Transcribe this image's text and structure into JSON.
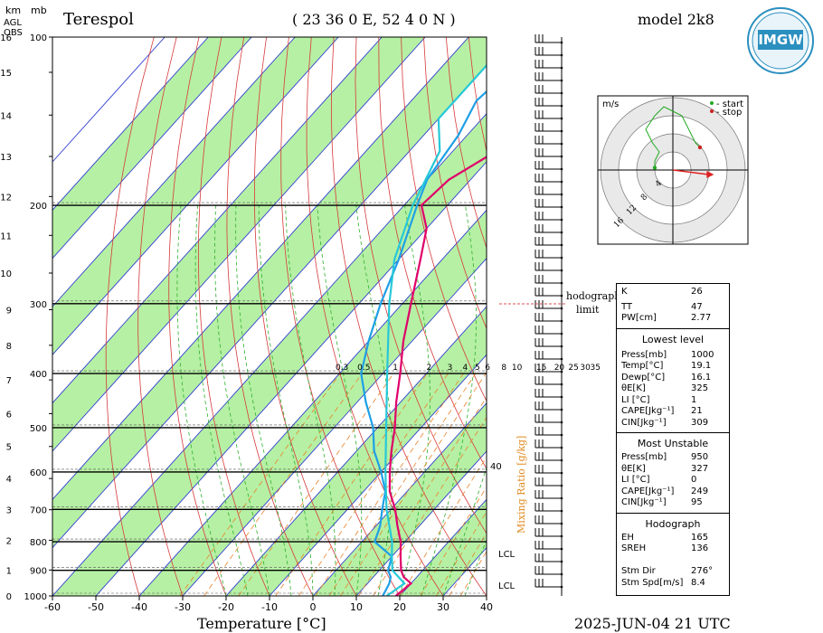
{
  "header": {
    "station": "Terespol",
    "coords": "( 23 36 0 E, 52 4 0 N )",
    "model": "model 2k8",
    "date_time": "2025-JUN-04   21 UTC",
    "logo_text": "IMGW"
  },
  "axes": {
    "km_label": "km",
    "agl_label": [
      "AGL",
      "OBS"
    ],
    "mb_label": "mb",
    "x_title": "Temperature [°C]",
    "mixing_ratio_title": "Mixing Ratio [g/kg]",
    "x_ticks": [
      -60,
      -50,
      -40,
      -30,
      -20,
      -10,
      0,
      10,
      20,
      30,
      40
    ],
    "p_ticks": [
      100,
      200,
      300,
      400,
      500,
      600,
      700,
      800,
      900,
      1000
    ],
    "km_ticks": [
      0,
      1,
      2,
      3,
      4,
      5,
      6,
      7,
      8,
      9,
      10,
      11,
      12,
      13,
      14,
      15,
      16
    ],
    "mixing_ratio_labels": [
      "0.3",
      "0.5",
      "1",
      "2",
      "3",
      "4",
      "5",
      "6",
      "8",
      "10",
      "15",
      "20",
      "25",
      "30",
      "35"
    ],
    "right_label_40": "40",
    "lcl_label": "LCL"
  },
  "chart_data": {
    "type": "line",
    "xlabel": "Temperature [°C]",
    "ylabel": "mb",
    "xlim": [
      -60,
      40
    ],
    "ylim_hpa": [
      1000,
      100
    ],
    "y_scale": "log-pressure",
    "series": [
      {
        "color": "#e0006a",
        "points": [
          [
            1000,
            19.1
          ],
          [
            950,
            20
          ],
          [
            925,
            17
          ],
          [
            900,
            15
          ],
          [
            850,
            12
          ],
          [
            800,
            9
          ],
          [
            750,
            5
          ],
          [
            700,
            1
          ],
          [
            650,
            -4
          ],
          [
            600,
            -8
          ],
          [
            550,
            -12
          ],
          [
            500,
            -16
          ],
          [
            450,
            -21
          ],
          [
            400,
            -26
          ],
          [
            350,
            -32
          ],
          [
            300,
            -38
          ],
          [
            250,
            -45
          ],
          [
            220,
            -50
          ],
          [
            200,
            -56
          ],
          [
            180,
            -55
          ],
          [
            160,
            -50
          ],
          [
            140,
            -47
          ],
          [
            120,
            -47
          ],
          [
            100,
            -45
          ]
        ]
      },
      {
        "color": "#1ea0e6",
        "points": [
          [
            1000,
            16.1
          ],
          [
            950,
            15
          ],
          [
            925,
            14
          ],
          [
            900,
            12
          ],
          [
            850,
            10
          ],
          [
            800,
            3
          ],
          [
            750,
            1
          ],
          [
            700,
            -2
          ],
          [
            650,
            -5
          ],
          [
            600,
            -10
          ],
          [
            550,
            -16
          ],
          [
            500,
            -21
          ],
          [
            450,
            -28
          ],
          [
            400,
            -35
          ],
          [
            350,
            -40
          ],
          [
            300,
            -45
          ],
          [
            250,
            -50
          ],
          [
            200,
            -57
          ],
          [
            180,
            -60
          ],
          [
            150,
            -62
          ],
          [
            130,
            -65
          ],
          [
            100,
            -62
          ]
        ]
      },
      {
        "color": "#26c8d8",
        "points": [
          [
            1000,
            17
          ],
          [
            950,
            18.5
          ],
          [
            900,
            13
          ],
          [
            850,
            10
          ],
          [
            800,
            7
          ],
          [
            700,
            -1
          ],
          [
            600,
            -9
          ],
          [
            500,
            -18
          ],
          [
            400,
            -29
          ],
          [
            300,
            -43
          ],
          [
            250,
            -51
          ],
          [
            200,
            -58
          ],
          [
            160,
            -63
          ],
          [
            140,
            -70
          ],
          [
            120,
            -70
          ],
          [
            105,
            -70
          ]
        ]
      }
    ]
  },
  "hodograph": {
    "unit": "m/s",
    "legend": [
      "- start",
      "- stop"
    ],
    "rings": [
      "4",
      "8",
      "12",
      "16"
    ],
    "start_color": "#22aa22",
    "stop_color": "#cc2222",
    "points_ms": [
      [
        -4,
        0.5
      ],
      [
        -4,
        2
      ],
      [
        -3,
        4
      ],
      [
        -4.5,
        6
      ],
      [
        -6,
        9
      ],
      [
        -4,
        12
      ],
      [
        -2,
        14
      ],
      [
        0,
        13
      ],
      [
        2,
        12
      ],
      [
        3,
        10
      ],
      [
        4,
        8
      ],
      [
        5,
        6
      ],
      [
        6,
        5
      ]
    ],
    "storm_motion": [
      7.5,
      -1
    ]
  },
  "limit_label": [
    "hodograph",
    "limit"
  ],
  "indices": {
    "k_label": "K",
    "k_value": "26",
    "tt_label": "TT",
    "tt_value": "47",
    "pw_label": "PW[cm]",
    "pw_value": "2.77",
    "lowest": {
      "title": "Lowest level",
      "rows": [
        [
          "Press[mb]",
          "1000"
        ],
        [
          "Temp[°C]",
          "19.1"
        ],
        [
          "Dewp[°C]",
          "16.1"
        ],
        [
          "θE[K]",
          "325"
        ],
        [
          "LI [°C]",
          "1"
        ],
        [
          "CAPE[Jkg⁻¹]",
          "21"
        ],
        [
          "CIN[Jkg⁻¹]",
          "309"
        ]
      ]
    },
    "unstable": {
      "title": "Most Unstable",
      "rows": [
        [
          "Press[mb]",
          "950"
        ],
        [
          "θE[K]",
          "327"
        ],
        [
          "LI [°C]",
          "0"
        ],
        [
          "CAPE[Jkg⁻¹]",
          "249"
        ],
        [
          "CIN[Jkg⁻¹]",
          "95"
        ]
      ]
    },
    "hodo": {
      "title": "Hodograph",
      "rows": [
        [
          "EH",
          "165"
        ],
        [
          "SREH",
          "136"
        ],
        [
          "",
          ""
        ],
        [
          "Stm Dir",
          "276°"
        ],
        [
          "Stm Spd[m/s]",
          "8.4"
        ]
      ]
    }
  }
}
